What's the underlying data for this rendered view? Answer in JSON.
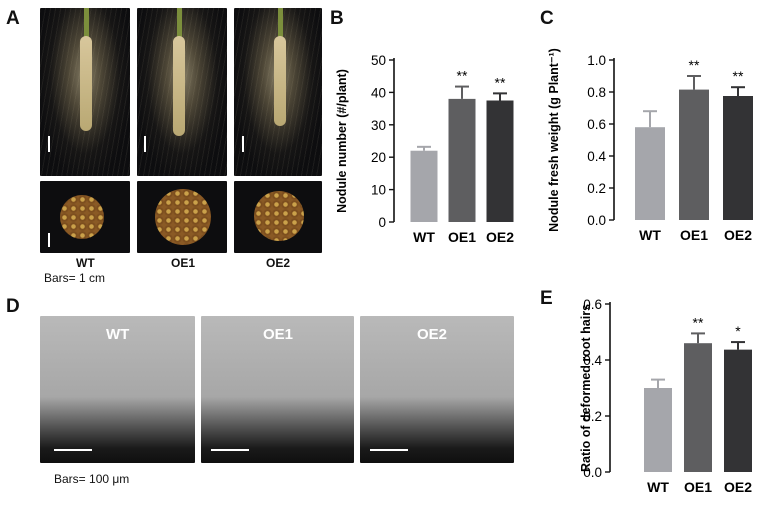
{
  "panels": {
    "a": {
      "letter": "A",
      "genotypes": [
        "WT",
        "OE1",
        "OE2"
      ],
      "scale": "Bars= 1 cm"
    },
    "d": {
      "letter": "D",
      "genotypes": [
        "WT",
        "OE1",
        "OE2"
      ],
      "scale": "Bars= 100 μm"
    }
  },
  "colors": {
    "wt": "#a5a6ab",
    "oe1": "#5e5e60",
    "oe2": "#333335"
  },
  "chart_data": [
    {
      "panel": "B",
      "type": "bar",
      "categories": [
        "WT",
        "OE1",
        "OE2"
      ],
      "values": [
        22,
        38,
        37.5
      ],
      "errors": [
        1.2,
        3.8,
        2.2
      ],
      "significance": [
        "",
        "**",
        "**"
      ],
      "ylabel": "Nodule number (#/plant)",
      "ylim": [
        0,
        50
      ],
      "yticks": [
        0,
        10,
        20,
        30,
        40,
        50
      ],
      "ytick_labels": [
        "0",
        "10",
        "20",
        "30",
        "40",
        "50"
      ]
    },
    {
      "panel": "C",
      "type": "bar",
      "categories": [
        "WT",
        "OE1",
        "OE2"
      ],
      "values": [
        0.58,
        0.815,
        0.775
      ],
      "errors": [
        0.1,
        0.085,
        0.055
      ],
      "significance": [
        "",
        "**",
        "**"
      ],
      "ylabel": "Nodule fresh weight (g Plant⁻¹)",
      "ylim": [
        0,
        1.0
      ],
      "yticks": [
        0,
        0.2,
        0.4,
        0.6,
        0.8,
        1.0
      ],
      "ytick_labels": [
        "0.0",
        "0.2",
        "0.4",
        "0.6",
        "0.8",
        "1.0"
      ]
    },
    {
      "panel": "E",
      "type": "bar",
      "categories": [
        "WT",
        "OE1",
        "OE2"
      ],
      "values": [
        0.3,
        0.46,
        0.437
      ],
      "errors": [
        0.03,
        0.035,
        0.027
      ],
      "significance": [
        "",
        "**",
        "*"
      ],
      "ylabel": "Ratio of deformed root hairs",
      "ylim": [
        0,
        0.6
      ],
      "yticks": [
        0,
        0.2,
        0.4,
        0.6
      ],
      "ytick_labels": [
        "0.0",
        "0.2",
        "0.4",
        "0.6"
      ]
    }
  ]
}
